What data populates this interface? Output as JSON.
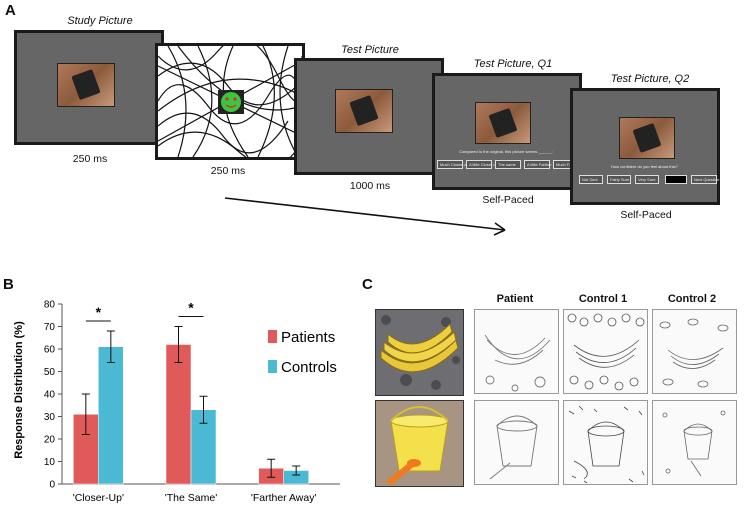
{
  "panel_a": {
    "letter": "A",
    "stages": [
      {
        "caption": "Study Picture",
        "duration": "250 ms"
      },
      {
        "caption": "",
        "duration": "250 ms"
      },
      {
        "caption": "Test Picture",
        "duration": "1000 ms"
      },
      {
        "caption": "Test Picture, Q1",
        "duration": "Self-Paced"
      },
      {
        "caption": "Test Picture, Q2",
        "duration": "Self-Paced"
      }
    ],
    "q1": {
      "question": "Compared to the original, this picture seems ______:",
      "options": [
        "Much Closer up",
        "A little Closer up",
        "The same",
        "A little Farther away",
        "Much Farther away"
      ]
    },
    "q2": {
      "question": "How confident do you feel about this?",
      "options": [
        "Not Sure",
        "Fairly Sure",
        "Very Sure",
        "",
        "Next Question"
      ]
    }
  },
  "panel_b": {
    "letter": "B",
    "significance_marker": "*"
  },
  "chart_data": {
    "type": "bar",
    "categories": [
      "'Closer-Up'",
      "'The Same'",
      "'Farther Away'"
    ],
    "series": [
      {
        "name": "Patients",
        "values": [
          31,
          62,
          7
        ],
        "errors": [
          9,
          8,
          4
        ],
        "color": "#e05a5a"
      },
      {
        "name": "Controls",
        "values": [
          61,
          33,
          6
        ],
        "errors": [
          7,
          6,
          2
        ],
        "color": "#4bb8d4"
      }
    ],
    "ylabel": "Response Distribution (%)",
    "ylim": [
      0,
      80
    ],
    "yticks": [
      0,
      10,
      20,
      30,
      40,
      50,
      60,
      70,
      80
    ],
    "legend_position": "right",
    "grid": false,
    "significant_categories": [
      0,
      1
    ]
  },
  "panel_c": {
    "letter": "C",
    "column_headers": [
      "Patient",
      "Control 1",
      "Control 2"
    ],
    "rows": [
      "bananas",
      "bucket"
    ]
  }
}
